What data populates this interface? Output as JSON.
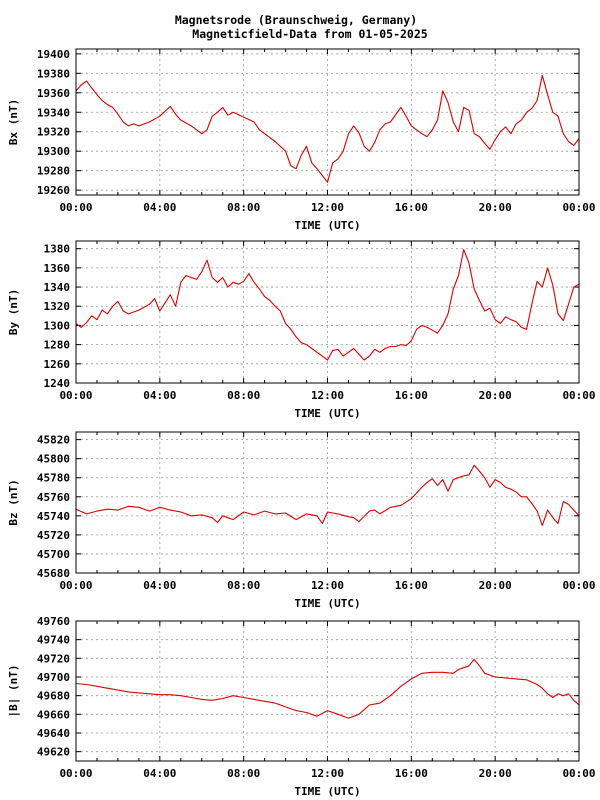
{
  "title_line1": "Magnetsrode (Braunschweig, Germany)",
  "title_line2": "Magneticfield-Data from 01-05-2025",
  "colors": {
    "series": "#dd0000",
    "grid": "#999999",
    "frame": "#000000"
  },
  "chart_data": [
    {
      "type": "line",
      "ylabel": "Bx (nT)",
      "xlabel": "TIME (UTC)",
      "xlim": [
        0,
        24
      ],
      "xticks": [
        "00:00",
        "04:00",
        "08:00",
        "12:00",
        "16:00",
        "20:00",
        "00:00"
      ],
      "ylim": [
        19255,
        19405
      ],
      "yticks": [
        19260,
        19280,
        19300,
        19320,
        19340,
        19360,
        19380,
        19400
      ],
      "grid": true,
      "series": [
        {
          "x": [
            0,
            0.25,
            0.5,
            0.75,
            1.0,
            1.25,
            1.5,
            1.75,
            2.0,
            2.25,
            2.5,
            2.75,
            3.0,
            3.5,
            4.0,
            4.5,
            4.75,
            5.0,
            5.5,
            6.0,
            6.25,
            6.5,
            6.75,
            7.0,
            7.25,
            7.5,
            8.0,
            8.5,
            8.75,
            9.0,
            9.5,
            10.0,
            10.25,
            10.5,
            10.75,
            11.0,
            11.25,
            11.5,
            11.75,
            12.0,
            12.25,
            12.5,
            12.75,
            13.0,
            13.25,
            13.5,
            13.75,
            14.0,
            14.25,
            14.5,
            14.75,
            15.0,
            15.5,
            15.75,
            16.0,
            16.5,
            16.75,
            17.0,
            17.25,
            17.5,
            17.75,
            18.0,
            18.25,
            18.5,
            18.75,
            19.0,
            19.25,
            19.5,
            19.75,
            20.0,
            20.25,
            20.5,
            20.75,
            21.0,
            21.25,
            21.5,
            21.75,
            22.0,
            22.25,
            22.5,
            22.75,
            23.0,
            23.25,
            23.5,
            23.75,
            24.0
          ],
          "y": [
            19362,
            19368,
            19372,
            19365,
            19358,
            19352,
            19348,
            19345,
            19338,
            19330,
            19326,
            19328,
            19326,
            19330,
            19336,
            19346,
            19338,
            19332,
            19326,
            19318,
            19322,
            19336,
            19340,
            19345,
            19337,
            19340,
            19335,
            19330,
            19322,
            19318,
            19310,
            19300,
            19285,
            19282,
            19296,
            19305,
            19288,
            19282,
            19275,
            19268,
            19288,
            19292,
            19300,
            19318,
            19326,
            19319,
            19305,
            19300,
            19309,
            19322,
            19328,
            19330,
            19345,
            19336,
            19326,
            19318,
            19315,
            19322,
            19332,
            19362,
            19350,
            19330,
            19320,
            19345,
            19342,
            19318,
            19315,
            19308,
            19302,
            19312,
            19320,
            19325,
            19318,
            19328,
            19332,
            19340,
            19344,
            19352,
            19378,
            19358,
            19340,
            19336,
            19318,
            19310,
            19306,
            19313
          ]
        }
      ]
    },
    {
      "type": "line",
      "ylabel": "By (nT)",
      "xlabel": "TIME (UTC)",
      "xlim": [
        0,
        24
      ],
      "xticks": [
        "00:00",
        "04:00",
        "08:00",
        "12:00",
        "16:00",
        "20:00",
        "00:00"
      ],
      "ylim": [
        1240,
        1388
      ],
      "yticks": [
        1240,
        1260,
        1280,
        1300,
        1320,
        1340,
        1360,
        1380
      ],
      "grid": true,
      "series": [
        {
          "x": [
            0,
            0.25,
            0.5,
            0.75,
            1.0,
            1.25,
            1.5,
            1.75,
            2.0,
            2.25,
            2.5,
            3.0,
            3.5,
            3.75,
            4.0,
            4.5,
            4.75,
            5.0,
            5.25,
            5.5,
            5.75,
            6.0,
            6.25,
            6.5,
            6.75,
            7.0,
            7.25,
            7.5,
            7.75,
            8.0,
            8.25,
            8.5,
            8.75,
            9.0,
            9.25,
            9.5,
            9.75,
            10.0,
            10.25,
            10.5,
            10.75,
            11.0,
            11.25,
            11.5,
            11.75,
            12.0,
            12.25,
            12.5,
            12.75,
            13.0,
            13.25,
            13.5,
            13.75,
            14.0,
            14.25,
            14.5,
            14.75,
            15.0,
            15.25,
            15.5,
            15.75,
            16.0,
            16.25,
            16.5,
            16.75,
            17.0,
            17.25,
            17.5,
            17.75,
            18.0,
            18.25,
            18.5,
            18.75,
            19.0,
            19.25,
            19.5,
            19.75,
            20.0,
            20.25,
            20.5,
            20.75,
            21.0,
            21.25,
            21.5,
            21.75,
            22.0,
            22.25,
            22.5,
            22.75,
            23.0,
            23.25,
            23.5,
            23.75,
            24.0
          ],
          "y": [
            1302,
            1298,
            1303,
            1310,
            1306,
            1316,
            1312,
            1320,
            1325,
            1315,
            1312,
            1316,
            1322,
            1328,
            1315,
            1332,
            1320,
            1345,
            1352,
            1350,
            1348,
            1356,
            1368,
            1350,
            1345,
            1350,
            1340,
            1345,
            1343,
            1346,
            1354,
            1345,
            1338,
            1330,
            1326,
            1320,
            1315,
            1302,
            1296,
            1288,
            1282,
            1280,
            1276,
            1272,
            1268,
            1264,
            1274,
            1275,
            1268,
            1272,
            1276,
            1270,
            1264,
            1268,
            1275,
            1272,
            1276,
            1278,
            1278,
            1280,
            1279,
            1284,
            1296,
            1300,
            1298,
            1295,
            1292,
            1300,
            1312,
            1338,
            1352,
            1379,
            1365,
            1338,
            1326,
            1315,
            1318,
            1306,
            1302,
            1309,
            1306,
            1304,
            1298,
            1296,
            1322,
            1346,
            1340,
            1360,
            1342,
            1312,
            1305,
            1322,
            1340,
            1343
          ]
        }
      ]
    },
    {
      "type": "line",
      "ylabel": "Bz (nT)",
      "xlabel": "TIME (UTC)",
      "xlim": [
        0,
        24
      ],
      "xticks": [
        "00:00",
        "04:00",
        "08:00",
        "12:00",
        "16:00",
        "20:00",
        "00:00"
      ],
      "ylim": [
        45680,
        45828
      ],
      "yticks": [
        45680,
        45700,
        45720,
        45740,
        45760,
        45780,
        45800,
        45820
      ],
      "grid": true,
      "series": [
        {
          "x": [
            0,
            0.5,
            1.0,
            1.5,
            2.0,
            2.5,
            3.0,
            3.5,
            4.0,
            4.5,
            5.0,
            5.5,
            6.0,
            6.5,
            6.75,
            7.0,
            7.5,
            8.0,
            8.5,
            9.0,
            9.5,
            10.0,
            10.5,
            11.0,
            11.5,
            11.75,
            12.0,
            12.5,
            13.0,
            13.25,
            13.5,
            14.0,
            14.25,
            14.5,
            15.0,
            15.5,
            16.0,
            16.25,
            16.5,
            16.75,
            17.0,
            17.25,
            17.5,
            17.75,
            18.0,
            18.25,
            18.5,
            18.75,
            19.0,
            19.25,
            19.5,
            19.75,
            20.0,
            20.25,
            20.5,
            20.75,
            21.0,
            21.25,
            21.5,
            21.75,
            22.0,
            22.25,
            22.5,
            22.75,
            23.0,
            23.25,
            23.5,
            23.75,
            24.0
          ],
          "y": [
            45747,
            45742,
            45745,
            45747,
            45746,
            45750,
            45749,
            45745,
            45749,
            45746,
            45744,
            45740,
            45741,
            45738,
            45733,
            45740,
            45736,
            45744,
            45741,
            45745,
            45742,
            45743,
            45736,
            45742,
            45740,
            45732,
            45744,
            45742,
            45739,
            45738,
            45734,
            45745,
            45746,
            45742,
            45749,
            45751,
            45758,
            45764,
            45770,
            45775,
            45779,
            45772,
            45778,
            45766,
            45778,
            45780,
            45782,
            45783,
            45793,
            45787,
            45780,
            45770,
            45778,
            45775,
            45770,
            45768,
            45765,
            45760,
            45760,
            45753,
            45745,
            45730,
            45746,
            45738,
            45732,
            45755,
            45752,
            45746,
            45740
          ]
        }
      ]
    },
    {
      "type": "line",
      "ylabel": "|B| (nT)",
      "xlabel": "TIME (UTC)",
      "xlim": [
        0,
        24
      ],
      "xticks": [
        "00:00",
        "04:00",
        "08:00",
        "12:00",
        "16:00",
        "20:00",
        "00:00"
      ],
      "ylim": [
        49610,
        49760
      ],
      "yticks": [
        49620,
        49640,
        49660,
        49680,
        49700,
        49720,
        49740,
        49760
      ],
      "grid": true,
      "series": [
        {
          "x": [
            0,
            0.5,
            1.0,
            1.5,
            2.0,
            2.5,
            3.0,
            3.5,
            4.0,
            4.5,
            5.0,
            5.5,
            6.0,
            6.5,
            7.0,
            7.5,
            8.0,
            8.5,
            9.0,
            9.5,
            10.0,
            10.5,
            11.0,
            11.5,
            12.0,
            12.5,
            13.0,
            13.5,
            14.0,
            14.5,
            15.0,
            15.5,
            16.0,
            16.5,
            17.0,
            17.5,
            18.0,
            18.25,
            18.5,
            18.75,
            19.0,
            19.25,
            19.5,
            20.0,
            20.5,
            21.0,
            21.5,
            22.0,
            22.25,
            22.5,
            22.75,
            23.0,
            23.25,
            23.5,
            23.75,
            24.0
          ],
          "y": [
            49693,
            49692,
            49690,
            49688,
            49686,
            49684,
            49683,
            49682,
            49681,
            49681,
            49680,
            49678,
            49676,
            49675,
            49677,
            49680,
            49678,
            49676,
            49674,
            49672,
            49668,
            49664,
            49662,
            49658,
            49664,
            49660,
            49656,
            49660,
            49670,
            49672,
            49680,
            49690,
            49698,
            49704,
            49705,
            49705,
            49704,
            49708,
            49710,
            49712,
            49719,
            49712,
            49704,
            49700,
            49699,
            49698,
            49697,
            49692,
            49688,
            49682,
            49678,
            49682,
            49680,
            49682,
            49675,
            49670
          ]
        }
      ]
    }
  ]
}
